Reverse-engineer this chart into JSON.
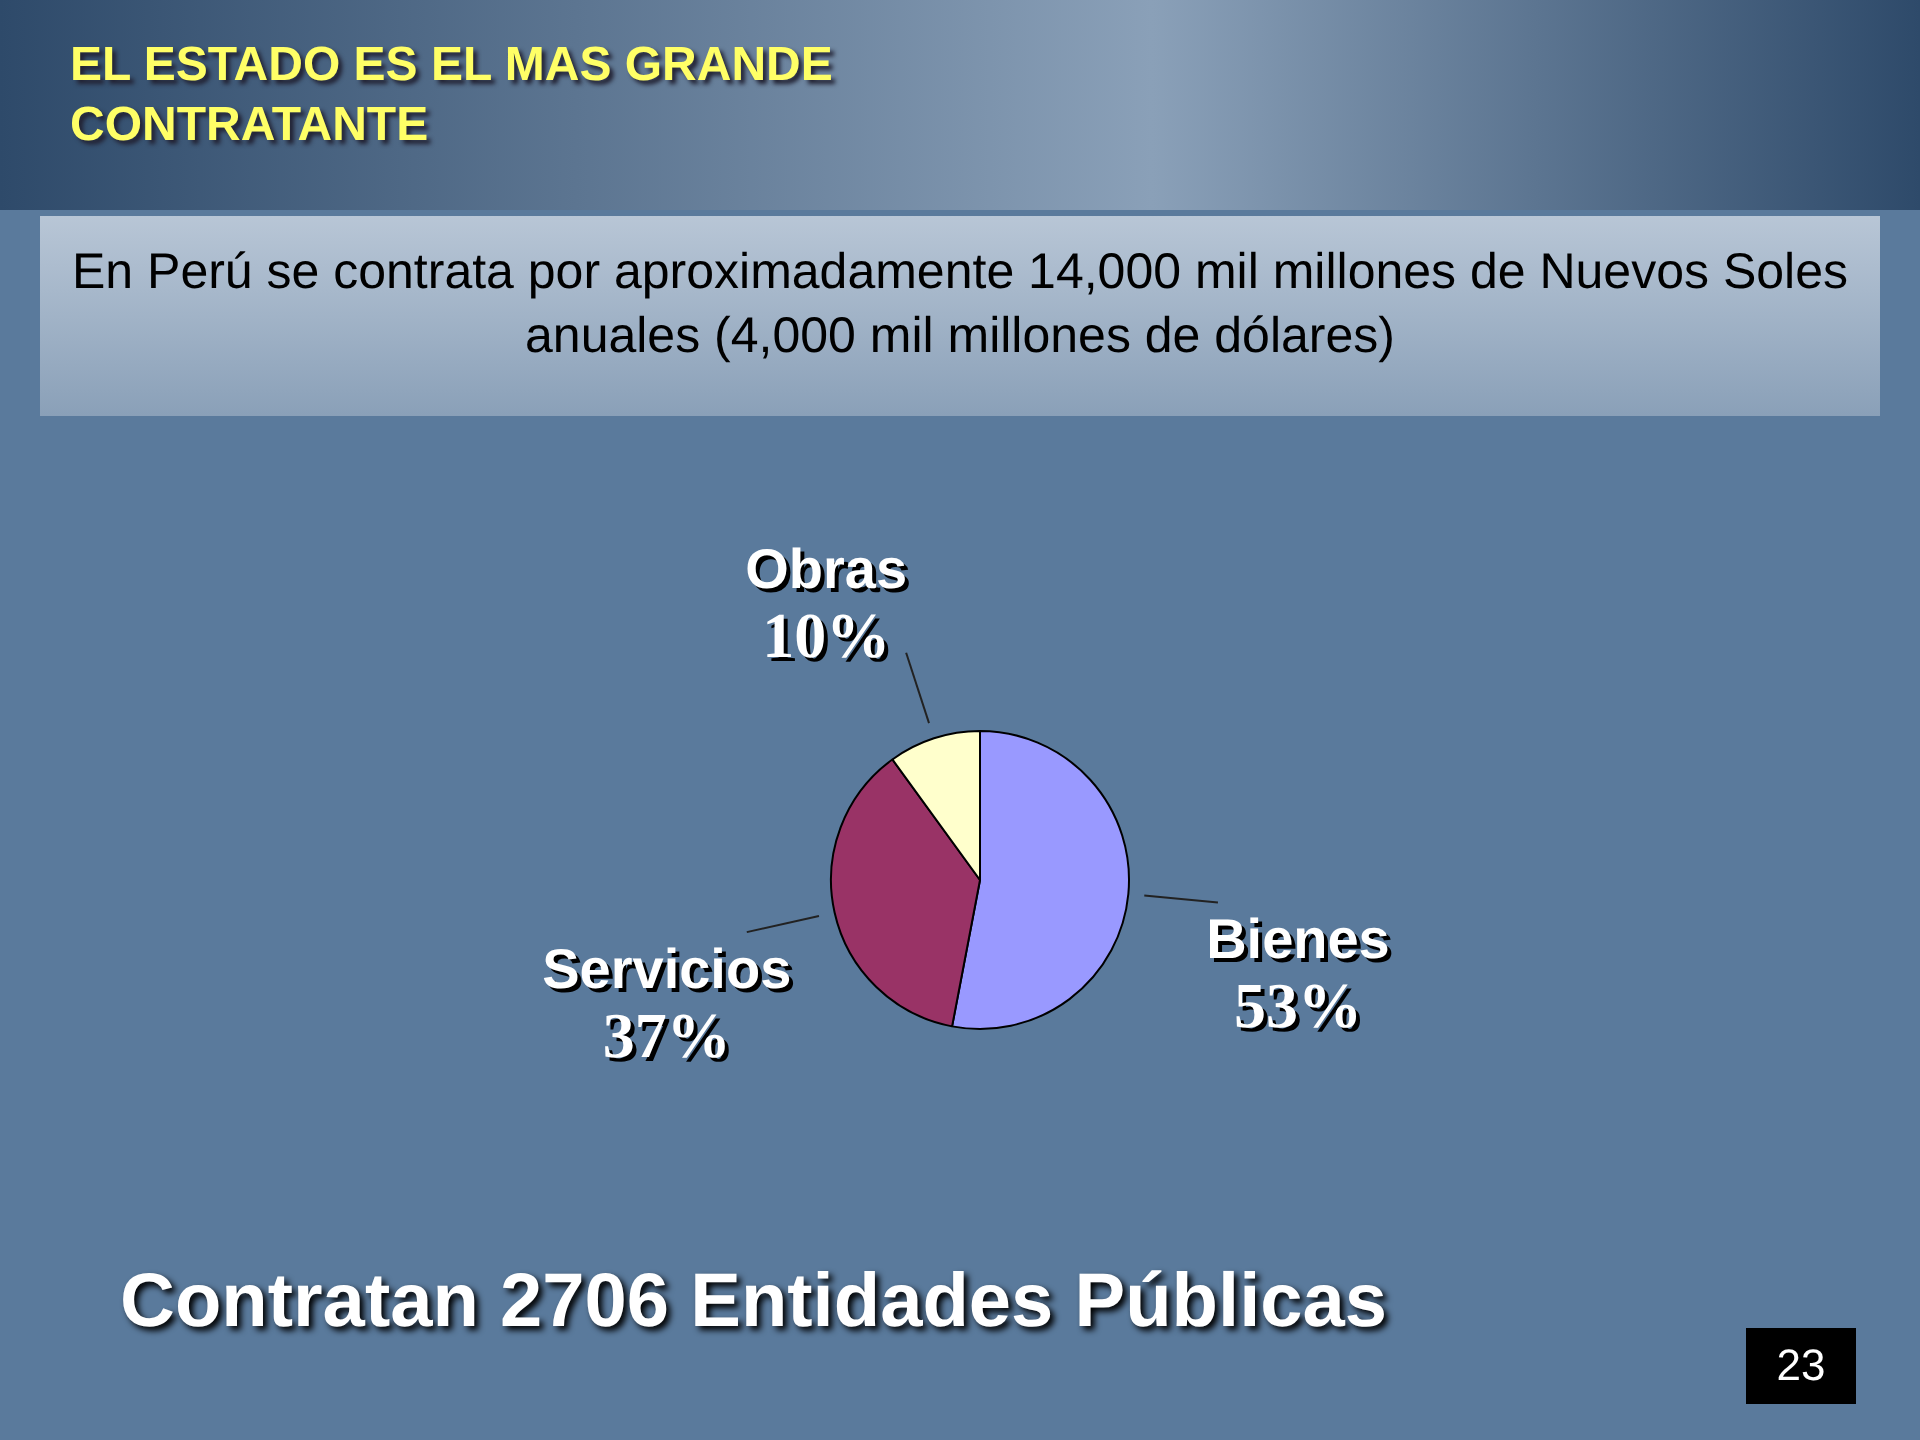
{
  "chart_data": {
    "type": "pie",
    "title": "EL ESTADO ES EL MAS GRANDE CONTRATANTE",
    "subtitle": "En Perú se contrata por aproximadamente 14,000 mil millones de Nuevos Soles anuales (4,000 mil millones de dólares)",
    "categories": [
      "Bienes",
      "Servicios",
      "Obras"
    ],
    "values": [
      53,
      37,
      10
    ],
    "value_labels": [
      "53%",
      "37%",
      "10%"
    ],
    "colors": [
      "#9999ff",
      "#993366",
      "#ffffcc"
    ],
    "legend": false,
    "annotations": [
      "Contratan 2706 Entidades Públicas",
      "23"
    ]
  }
}
